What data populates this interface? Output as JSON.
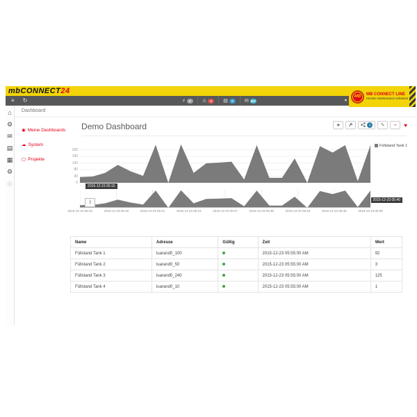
{
  "header": {
    "logo_text": "mbCONNECT",
    "logo_suffix": "24",
    "brand": {
      "abbr": "MB",
      "name": "MB CONNECT LINE",
      "tagline": "remote maintenance solutions"
    },
    "colors": {
      "yellow": "#F2D408",
      "red": "#E2001A",
      "dark": "#57585A"
    }
  },
  "toolbar": {
    "left_icons": [
      {
        "icon": "hamburger-menu",
        "glyph": "menu"
      },
      {
        "icon": "refresh",
        "glyph": "refresh"
      }
    ],
    "status_icons": [
      {
        "icon": "lightning",
        "badge": "0",
        "badge_color": "#9E9E9E"
      },
      {
        "icon": "warning",
        "badge": "2",
        "badge_color": "#D9534F"
      },
      {
        "icon": "list",
        "badge": "0",
        "badge_color": "#3C97C9"
      },
      {
        "icon": "envelope",
        "badge": "52+",
        "badge_color": "#46B8CF"
      }
    ],
    "caret": "▾"
  },
  "breadcrumb": "Dashboard",
  "sidebar": {
    "rail_icons": [
      "home",
      "cogs",
      "envelope",
      "tasks",
      "book",
      "gear",
      "support"
    ],
    "menu": [
      {
        "label": "Meine Dashboards",
        "icon": "dashboard"
      },
      {
        "label": "System",
        "icon": "system"
      },
      {
        "label": "Projekte",
        "icon": "projects"
      }
    ]
  },
  "main": {
    "title": "Demo Dashboard",
    "actions": [
      {
        "icon": "star"
      },
      {
        "icon": "wrench"
      },
      {
        "icon": "share",
        "badge": "1"
      },
      {
        "icon": "edit"
      },
      {
        "icon": "minus"
      },
      {
        "icon": "heart"
      }
    ]
  },
  "chart_data": {
    "type": "area",
    "title": "",
    "series": [
      {
        "name": "Füllstand Tank 1",
        "values": [
          35,
          38,
          60,
          108,
          70,
          42,
          230,
          0,
          233,
          60,
          118,
          122,
          128,
          20,
          228,
          30,
          30,
          148,
          0,
          222,
          183,
          228,
          10,
          228
        ]
      }
    ],
    "ylim": [
      0,
      240
    ],
    "yticks": [
      0,
      40,
      80,
      120,
      160,
      200
    ],
    "x_labels": [
      "2015-12-23 05:15",
      "2015-12-23 05:18",
      "2015-12-23 05:21",
      "2015-12-23 05:24",
      "2015-12-23 05:27",
      "2015-12-23 05:30",
      "2015-12-23 05:33",
      "2015-12-23 05:36",
      "2015-12-23 05:39"
    ],
    "range_start": "2015-12-23 05:15",
    "range_end": "2015-12-23 05:40",
    "legend_position": "right",
    "fill_color": "#7B7B7B",
    "grid": true,
    "navigator": true
  },
  "table": {
    "headers": [
      "Name",
      "Adresse",
      "Gültig",
      "Zeit",
      "Wert"
    ],
    "col_widths": [
      "24.5%",
      "20%",
      "12%",
      "34%",
      "9.5%"
    ],
    "rows": [
      {
        "name": "Füllstand Tank 1",
        "adresse": "luarand0_100",
        "gueltig": true,
        "zeit": "2015-12-23 05:55:00 AM",
        "wert": "92"
      },
      {
        "name": "Füllstand Tank 2",
        "adresse": "luarand0_50",
        "gueltig": true,
        "zeit": "2015-12-23 05:55:00 AM",
        "wert": "3"
      },
      {
        "name": "Füllstand Tank 3",
        "adresse": "luarand0_240",
        "gueltig": true,
        "zeit": "2015-12-23 05:55:00 AM",
        "wert": "125"
      },
      {
        "name": "Füllstand Tank 4",
        "adresse": "luarand0_10",
        "gueltig": true,
        "zeit": "2015-12-23 05:55:00 AM",
        "wert": "1"
      }
    ]
  }
}
